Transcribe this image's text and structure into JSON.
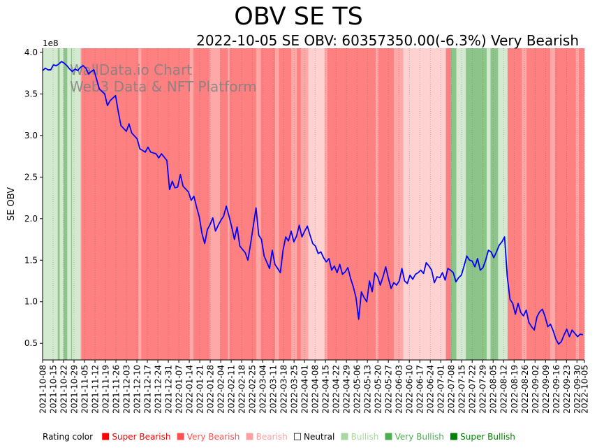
{
  "title": "OBV SE TS",
  "subtitle": "2022-10-05 SE OBV: 60357350.00(-6.3%) Very Bearish",
  "watermark": [
    "WallData.io Chart",
    "Web3 Data & NFT Platform"
  ],
  "chart_data": {
    "type": "line",
    "ylabel": "SE OBV",
    "y_offset_label": "1e8",
    "ylim": [
      0.3,
      4.05
    ],
    "yticks": [
      0.5,
      1.0,
      1.5,
      2.0,
      2.5,
      3.0,
      3.5,
      4.0
    ],
    "ytick_labels": [
      "0.5",
      "1.0",
      "1.5",
      "2.0",
      "2.5",
      "3.0",
      "3.5",
      "4.0"
    ],
    "x_start": "2021-10-08",
    "x_end": "2022-10-05",
    "xtick_labels": [
      "2021-10-08",
      "2021-10-15",
      "2021-10-22",
      "2021-10-29",
      "2021-11-05",
      "2021-11-12",
      "2021-11-19",
      "2021-11-26",
      "2021-12-03",
      "2021-12-10",
      "2021-12-17",
      "2021-12-24",
      "2021-12-31",
      "2022-01-07",
      "2022-01-14",
      "2022-01-21",
      "2022-01-28",
      "2022-02-04",
      "2022-02-11",
      "2022-02-18",
      "2022-02-25",
      "2022-03-04",
      "2022-03-11",
      "2022-03-18",
      "2022-03-25",
      "2022-04-01",
      "2022-04-08",
      "2022-04-15",
      "2022-04-22",
      "2022-04-29",
      "2022-05-06",
      "2022-05-13",
      "2022-05-20",
      "2022-05-27",
      "2022-06-03",
      "2022-06-10",
      "2022-06-17",
      "2022-06-24",
      "2022-07-01",
      "2022-07-08",
      "2022-07-15",
      "2022-07-22",
      "2022-07-29",
      "2022-08-05",
      "2022-08-12",
      "2022-08-19",
      "2022-08-26",
      "2022-09-02",
      "2022-09-09",
      "2022-09-16",
      "2022-09-23",
      "2022-09-30",
      "2022-10-05"
    ],
    "series": [
      {
        "name": "SE OBV",
        "color": "#0000ff",
        "points": [
          [
            0,
            3.78
          ],
          [
            1,
            3.81
          ],
          [
            2,
            3.79
          ],
          [
            3,
            3.79
          ],
          [
            4,
            3.85
          ],
          [
            5,
            3.84
          ],
          [
            6,
            3.86
          ],
          [
            7,
            3.89
          ],
          [
            8,
            3.87
          ],
          [
            9,
            3.84
          ],
          [
            10,
            3.8
          ],
          [
            11,
            3.77
          ],
          [
            12,
            3.8
          ],
          [
            13,
            3.78
          ],
          [
            14,
            3.82
          ],
          [
            15,
            3.84
          ],
          [
            16,
            3.81
          ],
          [
            17,
            3.74
          ],
          [
            18,
            3.77
          ],
          [
            19,
            3.79
          ],
          [
            21,
            3.56
          ],
          [
            23,
            3.5
          ],
          [
            24,
            3.36
          ],
          [
            25,
            3.42
          ],
          [
            27,
            3.48
          ],
          [
            28,
            3.29
          ],
          [
            29,
            3.12
          ],
          [
            31,
            3.05
          ],
          [
            32,
            3.14
          ],
          [
            33,
            3.03
          ],
          [
            35,
            2.96
          ],
          [
            36,
            2.84
          ],
          [
            38,
            2.8
          ],
          [
            39,
            2.86
          ],
          [
            40,
            2.8
          ],
          [
            42,
            2.78
          ],
          [
            43,
            2.73
          ],
          [
            44,
            2.78
          ],
          [
            46,
            2.7
          ],
          [
            47,
            2.35
          ],
          [
            48,
            2.45
          ],
          [
            49,
            2.37
          ],
          [
            50,
            2.38
          ],
          [
            51,
            2.53
          ],
          [
            52,
            2.39
          ],
          [
            54,
            2.32
          ],
          [
            55,
            2.22
          ],
          [
            56,
            2.27
          ],
          [
            57,
            2.14
          ],
          [
            58,
            2.02
          ],
          [
            59,
            1.82
          ],
          [
            60,
            1.7
          ],
          [
            61,
            1.87
          ],
          [
            62,
            1.93
          ],
          [
            63,
            2.01
          ],
          [
            64,
            1.85
          ],
          [
            65,
            1.92
          ],
          [
            66,
            1.98
          ],
          [
            67,
            2.03
          ],
          [
            68,
            2.15
          ],
          [
            69,
            2.03
          ],
          [
            70,
            1.9
          ],
          [
            71,
            1.75
          ],
          [
            72,
            1.9
          ],
          [
            73,
            1.67
          ],
          [
            74,
            1.63
          ],
          [
            75,
            1.59
          ],
          [
            76,
            1.5
          ],
          [
            77,
            1.7
          ],
          [
            79,
            2.13
          ],
          [
            80,
            1.8
          ],
          [
            81,
            1.75
          ],
          [
            82,
            1.55
          ],
          [
            84,
            1.4
          ],
          [
            85,
            1.62
          ],
          [
            86,
            1.45
          ],
          [
            87,
            1.4
          ],
          [
            88,
            1.35
          ],
          [
            89,
            1.62
          ],
          [
            90,
            1.78
          ],
          [
            91,
            1.73
          ],
          [
            92,
            1.85
          ],
          [
            93,
            1.72
          ],
          [
            94,
            1.79
          ],
          [
            95,
            1.92
          ],
          [
            96,
            1.78
          ],
          [
            97,
            1.85
          ],
          [
            98,
            1.91
          ],
          [
            99,
            1.8
          ],
          [
            100,
            1.7
          ],
          [
            101,
            1.67
          ],
          [
            102,
            1.58
          ],
          [
            103,
            1.6
          ],
          [
            104,
            1.53
          ],
          [
            105,
            1.48
          ],
          [
            106,
            1.52
          ],
          [
            107,
            1.38
          ],
          [
            108,
            1.43
          ],
          [
            109,
            1.35
          ],
          [
            110,
            1.45
          ],
          [
            111,
            1.33
          ],
          [
            112,
            1.36
          ],
          [
            113,
            1.41
          ],
          [
            114,
            1.28
          ],
          [
            115,
            1.18
          ],
          [
            116,
            1.05
          ],
          [
            117,
            0.79
          ],
          [
            118,
            1.12
          ],
          [
            119,
            1.05
          ],
          [
            120,
            1.0
          ],
          [
            121,
            1.25
          ],
          [
            122,
            1.12
          ],
          [
            123,
            1.35
          ],
          [
            124,
            1.3
          ],
          [
            125,
            1.2
          ],
          [
            126,
            1.3
          ],
          [
            127,
            1.42
          ],
          [
            128,
            1.28
          ],
          [
            129,
            1.16
          ],
          [
            130,
            1.23
          ],
          [
            131,
            1.2
          ],
          [
            132,
            1.25
          ],
          [
            133,
            1.4
          ],
          [
            134,
            1.25
          ],
          [
            135,
            1.22
          ],
          [
            136,
            1.32
          ],
          [
            137,
            1.27
          ],
          [
            138,
            1.33
          ],
          [
            139,
            1.35
          ],
          [
            140,
            1.38
          ],
          [
            141,
            1.34
          ],
          [
            142,
            1.47
          ],
          [
            143,
            1.43
          ],
          [
            144,
            1.38
          ],
          [
            145,
            1.23
          ],
          [
            146,
            1.3
          ],
          [
            147,
            1.29
          ],
          [
            148,
            1.35
          ],
          [
            149,
            1.26
          ],
          [
            150,
            1.4
          ],
          [
            151,
            1.38
          ],
          [
            152,
            1.35
          ],
          [
            153,
            1.24
          ],
          [
            154,
            1.29
          ],
          [
            155,
            1.32
          ],
          [
            156,
            1.43
          ],
          [
            157,
            1.55
          ],
          [
            158,
            1.5
          ],
          [
            159,
            1.49
          ],
          [
            160,
            1.42
          ],
          [
            161,
            1.52
          ],
          [
            162,
            1.38
          ],
          [
            163,
            1.41
          ],
          [
            164,
            1.5
          ],
          [
            165,
            1.62
          ],
          [
            166,
            1.6
          ],
          [
            167,
            1.53
          ],
          [
            168,
            1.6
          ],
          [
            169,
            1.68
          ],
          [
            170,
            1.72
          ],
          [
            171,
            1.78
          ],
          [
            172,
            1.3
          ],
          [
            173,
            1.03
          ],
          [
            174,
            0.98
          ],
          [
            175,
            0.85
          ],
          [
            176,
            0.98
          ],
          [
            177,
            0.87
          ],
          [
            178,
            0.83
          ],
          [
            179,
            0.9
          ],
          [
            180,
            0.75
          ],
          [
            181,
            0.7
          ],
          [
            182,
            0.66
          ],
          [
            183,
            0.82
          ],
          [
            184,
            0.88
          ],
          [
            185,
            0.91
          ],
          [
            186,
            0.82
          ],
          [
            187,
            0.7
          ],
          [
            188,
            0.73
          ],
          [
            189,
            0.65
          ],
          [
            190,
            0.55
          ],
          [
            191,
            0.49
          ],
          [
            192,
            0.52
          ],
          [
            193,
            0.6
          ],
          [
            194,
            0.67
          ],
          [
            195,
            0.58
          ],
          [
            196,
            0.66
          ],
          [
            197,
            0.62
          ],
          [
            198,
            0.58
          ],
          [
            199,
            0.61
          ],
          [
            200,
            0.604
          ]
        ]
      }
    ],
    "rating_bands": [
      {
        "from": 0,
        "to": 16,
        "rating": "Bullish"
      },
      {
        "from": 16,
        "to": 18,
        "rating": "Very Bullish"
      },
      {
        "from": 18,
        "to": 22,
        "rating": "Bullish"
      },
      {
        "from": 22,
        "to": 26,
        "rating": "Very Bullish"
      },
      {
        "from": 26,
        "to": 30,
        "rating": "Bullish"
      },
      {
        "from": 30,
        "to": 31,
        "rating": "Very Bullish"
      },
      {
        "from": 31,
        "to": 40,
        "rating": "Bullish"
      },
      {
        "from": 40,
        "to": 41,
        "rating": "Bearish"
      },
      {
        "from": 41,
        "to": 101,
        "rating": "Very Bearish"
      },
      {
        "from": 101,
        "to": 104,
        "rating": "Bearish"
      },
      {
        "from": 104,
        "to": 155,
        "rating": "Very Bearish"
      },
      {
        "from": 155,
        "to": 159,
        "rating": "Bearish"
      },
      {
        "from": 159,
        "to": 176,
        "rating": "Very Bearish"
      },
      {
        "from": 176,
        "to": 187,
        "rating": "Bearish"
      },
      {
        "from": 187,
        "to": 195,
        "rating": "Very Bearish"
      },
      {
        "from": 195,
        "to": 197,
        "rating": "Bearish"
      },
      {
        "from": 197,
        "to": 225,
        "rating": "Very Bearish"
      },
      {
        "from": 225,
        "to": 230,
        "rating": "Bearish"
      },
      {
        "from": 230,
        "to": 245,
        "rating": "Very Bearish"
      },
      {
        "from": 245,
        "to": 249,
        "rating": "Bearish"
      },
      {
        "from": 249,
        "to": 262,
        "rating": "Very Bearish"
      },
      {
        "from": 262,
        "to": 268,
        "rating": "Bearish"
      },
      {
        "from": 268,
        "to": 272,
        "rating": "Very Bearish"
      },
      {
        "from": 272,
        "to": 280,
        "rating": "Bearish"
      },
      {
        "from": 280,
        "to": 297,
        "rating": "Neutral"
      },
      {
        "from": 297,
        "to": 300,
        "rating": "Bearish"
      },
      {
        "from": 300,
        "to": 351,
        "rating": "Very Bearish"
      },
      {
        "from": 351,
        "to": 354,
        "rating": "Bearish"
      },
      {
        "from": 354,
        "to": 370,
        "rating": "Very Bearish"
      },
      {
        "from": 370,
        "to": 380,
        "rating": "Bearish"
      },
      {
        "from": 380,
        "to": 425,
        "rating": "Neutral"
      },
      {
        "from": 425,
        "to": 430,
        "rating": "Very Bearish"
      },
      {
        "from": 430,
        "to": 436,
        "rating": "Very Bullish"
      },
      {
        "from": 436,
        "to": 446,
        "rating": "Bullish"
      },
      {
        "from": 446,
        "to": 458,
        "rating": "Very Bullish"
      },
      {
        "from": 458,
        "to": 468,
        "rating": "Very Bullish"
      },
      {
        "from": 468,
        "to": 472,
        "rating": "Bullish"
      },
      {
        "from": 472,
        "to": 480,
        "rating": "Very Bullish"
      },
      {
        "from": 480,
        "to": 490,
        "rating": "Bullish"
      },
      {
        "from": 490,
        "to": 505,
        "rating": "Very Bearish"
      },
      {
        "from": 505,
        "to": 510,
        "rating": "Bearish"
      },
      {
        "from": 510,
        "to": 535,
        "rating": "Very Bearish"
      },
      {
        "from": 535,
        "to": 540,
        "rating": "Bearish"
      },
      {
        "from": 540,
        "to": 562,
        "rating": "Very Bearish"
      },
      {
        "from": 562,
        "to": 565,
        "rating": "Bearish"
      },
      {
        "from": 565,
        "to": 571,
        "rating": "Very Bearish"
      }
    ]
  },
  "rating_colors": {
    "Super Bearish": "#ff0000",
    "Very Bearish": "#ff8080",
    "Bearish": "#ffa8a8",
    "Neutral": "#ffd2d2",
    "Bullish": "#d3ead0",
    "Very Bullish": "#8cc48a",
    "Super Bullish": "#008000"
  },
  "legend": {
    "title": "Rating color",
    "items": [
      {
        "label": "Super Bearish",
        "color": "#ff0000"
      },
      {
        "label": "Very Bearish",
        "color": "#ff5050"
      },
      {
        "label": "Bearish",
        "color": "#ffa0a0"
      },
      {
        "label": "Neutral",
        "color": "#000000"
      },
      {
        "label": "Bullish",
        "color": "#a8d8a0"
      },
      {
        "label": "Very Bullish",
        "color": "#4caf50"
      },
      {
        "label": "Super Bullish",
        "color": "#008000"
      }
    ]
  }
}
